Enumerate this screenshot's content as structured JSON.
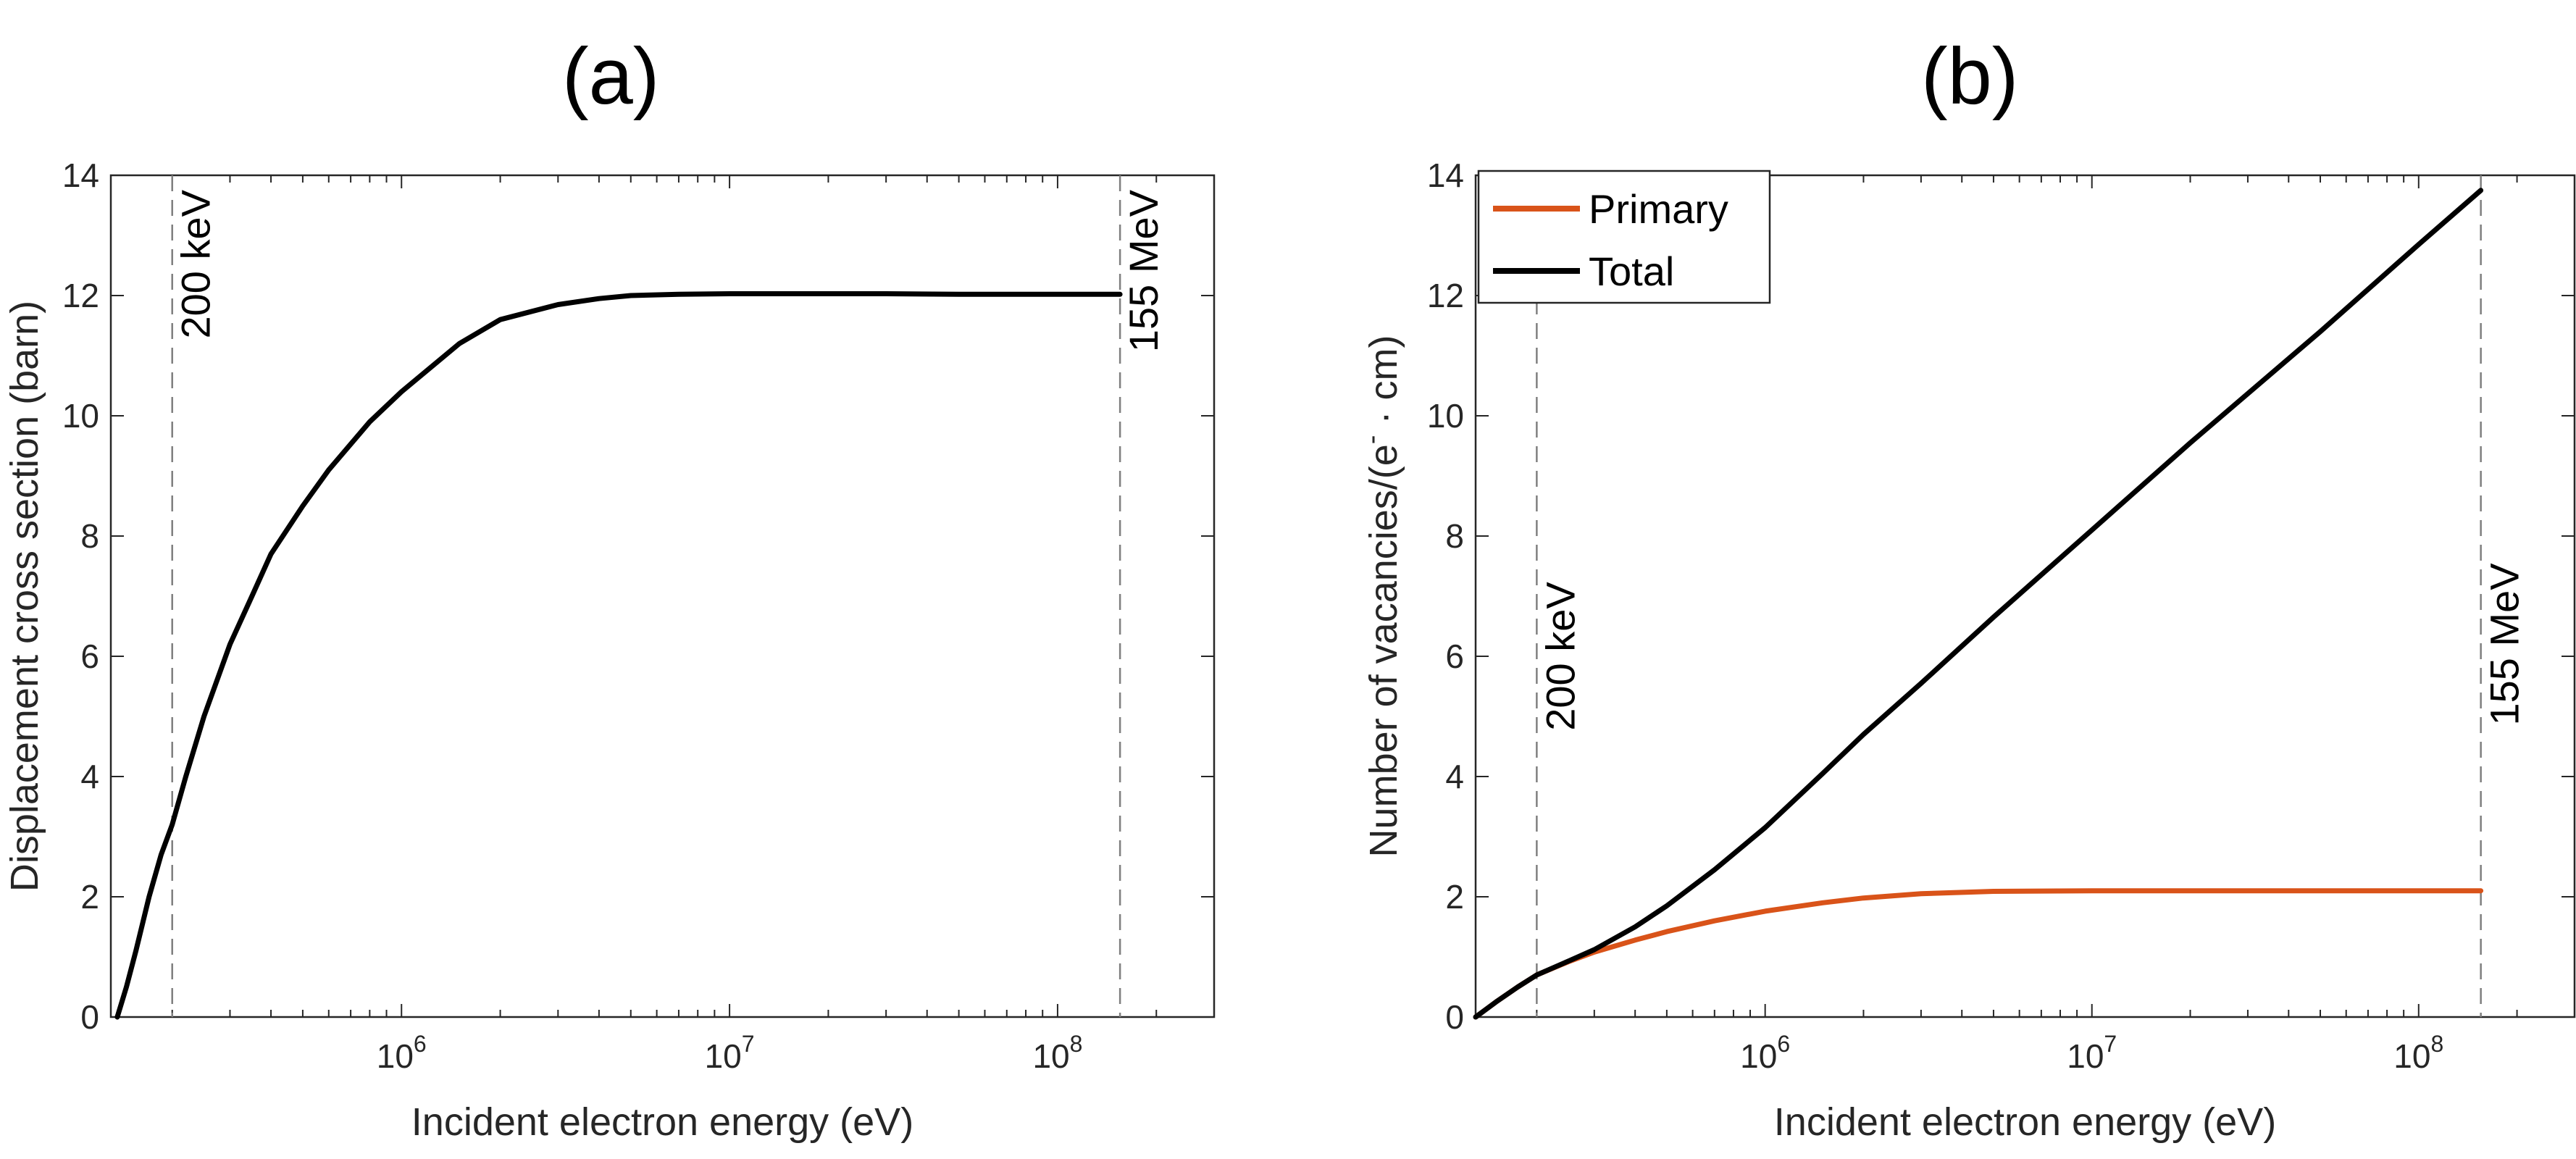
{
  "colors": {
    "primary": "#D95319",
    "total": "#000000",
    "axis": "#262626",
    "refline": "#7f7f7f"
  },
  "chart_data": [
    {
      "id": "a",
      "panel_label": "(a)",
      "type": "line",
      "xscale": "log",
      "xlim": [
        130000,
        300000000
      ],
      "ylim": [
        0,
        14
      ],
      "yticks": [
        "0",
        "2",
        "4",
        "6",
        "8",
        "10",
        "12",
        "14"
      ],
      "ytick_values": [
        0,
        2,
        4,
        6,
        8,
        10,
        12,
        14
      ],
      "xticks": [
        {
          "base": "10",
          "exp": "6",
          "value": 1000000
        },
        {
          "base": "10",
          "exp": "7",
          "value": 10000000
        },
        {
          "base": "10",
          "exp": "8",
          "value": 100000000
        }
      ],
      "xlabel": "Incident electron energy (eV)",
      "ylabel": "Displacement cross section (barn)",
      "vlines": [
        {
          "x": 200000,
          "label": "200 keV"
        },
        {
          "x": 155000000,
          "label": "155 MeV"
        }
      ],
      "series": [
        {
          "name": "Cross section",
          "color": "#000000",
          "x": [
            136000,
            145000,
            155000,
            170000,
            185000,
            200000,
            220000,
            250000,
            300000,
            350000,
            400000,
            500000,
            600000,
            800000,
            1000000,
            1500000,
            2000000,
            3000000,
            4000000,
            5000000,
            7000000,
            10000000,
            15000000,
            20000000,
            30000000,
            50000000,
            100000000,
            155000000
          ],
          "y": [
            0,
            0.5,
            1.1,
            2.0,
            2.7,
            3.2,
            4.0,
            5.0,
            6.2,
            7.0,
            7.7,
            8.5,
            9.1,
            9.9,
            10.4,
            11.2,
            11.6,
            11.85,
            11.95,
            12.0,
            12.02,
            12.03,
            12.03,
            12.03,
            12.03,
            12.02,
            12.02,
            12.02
          ]
        }
      ]
    },
    {
      "id": "b",
      "panel_label": "(b)",
      "type": "line",
      "xscale": "log",
      "xlim": [
        130000,
        300000000
      ],
      "ylim": [
        0,
        14
      ],
      "yticks": [
        "0",
        "2",
        "4",
        "6",
        "8",
        "10",
        "12",
        "14"
      ],
      "ytick_values": [
        0,
        2,
        4,
        6,
        8,
        10,
        12,
        14
      ],
      "xticks": [
        {
          "base": "10",
          "exp": "6",
          "value": 1000000
        },
        {
          "base": "10",
          "exp": "7",
          "value": 10000000
        },
        {
          "base": "10",
          "exp": "8",
          "value": 100000000
        }
      ],
      "xlabel": "Incident electron energy (eV)",
      "ylabel_main": "Number of vacancies/(e",
      "ylabel_sup": "-",
      "ylabel_end": " · cm)",
      "vlines": [
        {
          "x": 200000,
          "label": "200 keV"
        },
        {
          "x": 155000000,
          "label": "155 MeV"
        }
      ],
      "legend": {
        "location": "top-left",
        "entries": [
          "Primary",
          "Total"
        ]
      },
      "series": [
        {
          "name": "Primary",
          "color": "#D95319",
          "x": [
            130000,
            150000,
            175000,
            200000,
            250000,
            300000,
            400000,
            500000,
            700000,
            1000000,
            1500000,
            2000000,
            3000000,
            5000000,
            10000000,
            30000000,
            100000000,
            155000000
          ],
          "y": [
            0,
            0.25,
            0.5,
            0.7,
            0.92,
            1.08,
            1.28,
            1.42,
            1.6,
            1.76,
            1.9,
            1.98,
            2.05,
            2.09,
            2.1,
            2.1,
            2.1,
            2.1
          ]
        },
        {
          "name": "Total",
          "color": "#000000",
          "x": [
            130000,
            150000,
            175000,
            200000,
            250000,
            300000,
            400000,
            500000,
            700000,
            1000000,
            1500000,
            2000000,
            3000000,
            5000000,
            10000000,
            20000000,
            50000000,
            100000000,
            155000000
          ],
          "y": [
            0,
            0.25,
            0.5,
            0.7,
            0.93,
            1.12,
            1.5,
            1.85,
            2.45,
            3.15,
            4.05,
            4.7,
            5.55,
            6.65,
            8.1,
            9.55,
            11.4,
            12.85,
            13.75
          ]
        }
      ]
    }
  ]
}
